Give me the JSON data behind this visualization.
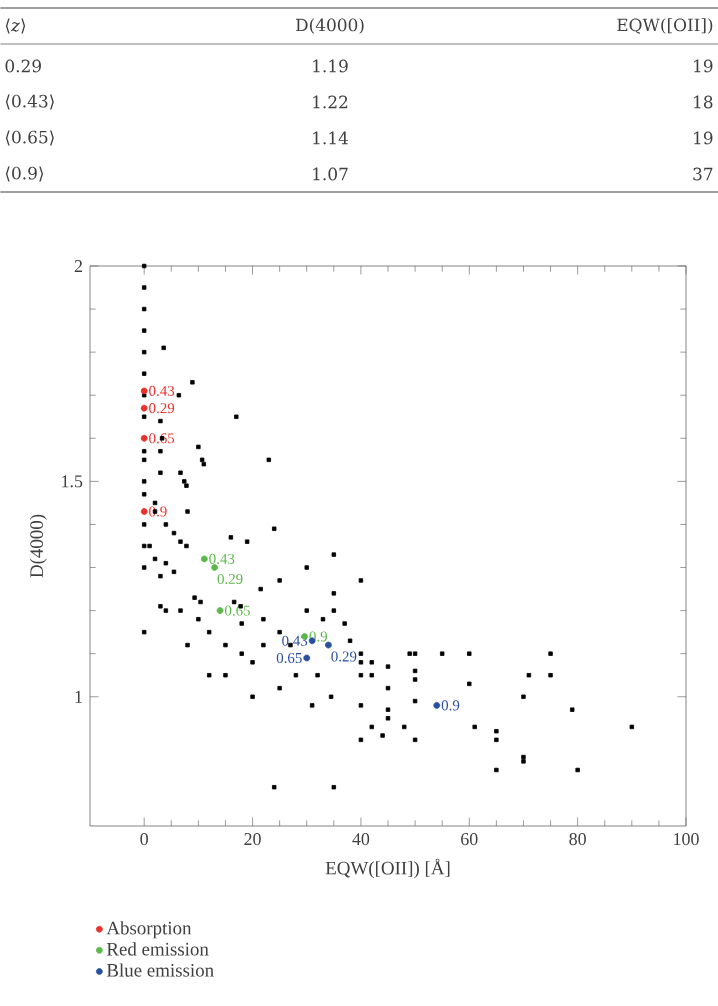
{
  "chart_data": {
    "type": "scatter",
    "xlabel": "EQW([OII]) [Å]",
    "ylabel": "D(4000)",
    "xlim": [
      -10,
      100
    ],
    "ylim": [
      0.7,
      2
    ],
    "xticks": [
      0,
      20,
      40,
      60,
      80,
      100
    ],
    "yticks": [
      1,
      1.5,
      2
    ],
    "marker": "square",
    "legend": "bottom left",
    "series": [
      {
        "color": "#000000",
        "x": [
          0,
          0,
          0,
          0,
          0,
          0,
          0,
          0,
          0,
          0,
          0,
          0,
          0,
          0,
          0,
          0,
          3.6,
          8.9,
          6.4,
          17,
          3,
          23,
          3.3,
          3,
          10,
          10.7,
          11,
          6.7,
          7.4,
          7.8,
          3,
          2,
          2,
          24,
          16,
          19,
          35,
          40,
          8,
          4,
          5.5,
          6.7,
          7.8,
          1,
          2,
          4,
          5.5,
          3,
          25,
          35,
          21.5,
          16.6,
          17.8,
          3,
          4,
          6.7,
          9.3,
          10.4,
          30,
          30,
          35,
          37,
          38,
          40,
          40,
          42,
          45,
          49,
          50,
          55,
          60,
          75,
          50,
          50,
          42,
          40,
          45,
          60,
          71,
          75,
          34.5,
          31,
          40,
          45,
          45,
          50,
          70,
          79,
          42,
          44,
          48,
          61,
          65,
          65,
          40,
          50,
          70,
          70,
          65,
          80,
          90,
          35,
          24,
          25,
          22,
          18,
          20,
          15,
          12,
          10,
          28,
          25,
          20,
          15,
          32,
          27,
          18,
          8,
          12,
          22,
          33
        ],
        "values": [
          2.0,
          1.95,
          1.9,
          1.85,
          1.8,
          1.75,
          1.7,
          1.65,
          1.57,
          1.55,
          1.5,
          1.47,
          1.4,
          1.35,
          1.3,
          1.15,
          1.81,
          1.73,
          1.7,
          1.65,
          1.64,
          1.55,
          1.6,
          1.57,
          1.58,
          1.55,
          1.54,
          1.52,
          1.5,
          1.49,
          1.52,
          1.45,
          1.43,
          1.39,
          1.37,
          1.36,
          1.33,
          1.27,
          1.43,
          1.4,
          1.38,
          1.36,
          1.35,
          1.35,
          1.32,
          1.31,
          1.29,
          1.28,
          1.27,
          1.24,
          1.25,
          1.22,
          1.21,
          1.21,
          1.2,
          1.2,
          1.23,
          1.22,
          1.3,
          1.2,
          1.2,
          1.17,
          1.13,
          1.1,
          1.08,
          1.08,
          1.07,
          1.1,
          1.1,
          1.1,
          1.1,
          1.1,
          1.06,
          1.04,
          1.05,
          1.05,
          1.02,
          1.03,
          1.05,
          1.05,
          1.0,
          0.98,
          0.98,
          0.97,
          0.95,
          0.99,
          1.0,
          0.97,
          0.93,
          0.91,
          0.93,
          0.93,
          0.92,
          0.9,
          0.9,
          0.9,
          0.86,
          0.85,
          0.83,
          0.83,
          0.93,
          0.79,
          0.79,
          1.15,
          1.12,
          1.1,
          1.08,
          1.12,
          1.15,
          1.18,
          1.05,
          1.02,
          1.0,
          1.05,
          1.05,
          1.12,
          1.17,
          1.12,
          1.05,
          1.18,
          1.18
        ]
      },
      {
        "name": "Absorption",
        "color": "#e8322b",
        "marker": "circle",
        "x": [
          0,
          0,
          0,
          0
        ],
        "values": [
          1.71,
          1.67,
          1.6,
          1.43
        ]
      },
      {
        "name": "Red emission",
        "color": "#5cb84a",
        "marker": "circle",
        "x": [
          11.1,
          13,
          14,
          29.6
        ],
        "values": [
          1.32,
          1.3,
          1.2,
          1.14
        ]
      },
      {
        "name": "Blue emission",
        "color": "#2a4fa0",
        "marker": "circle",
        "x": [
          34,
          30,
          31,
          54
        ],
        "values": [
          1.12,
          1.09,
          1.13,
          0.98
        ]
      }
    ],
    "annotations": [
      "⟨*z*⟩",
      "D(4000)",
      "EQW([OII])",
      "0.29",
      "1.19",
      "19",
      "⟨0.43⟩",
      "1.22",
      "18",
      "⟨0.65⟩",
      "1.14",
      "19",
      "⟨0.9⟩",
      "1.07",
      "37",
      {
        "text": "0.43",
        "x": 0,
        "y": 1.71
      },
      {
        "text": "0.29",
        "x": 0,
        "y": 1.67
      },
      {
        "text": "0.65",
        "x": 0,
        "y": 1.6
      },
      {
        "text": "0.9",
        "x": 0,
        "y": 1.43
      },
      {
        "text": "0.43",
        "x": 11.1,
        "y": 1.32
      },
      {
        "text": "0.29",
        "x": 13,
        "y": 1.3
      },
      {
        "text": "0.65",
        "x": 14,
        "y": 1.2
      },
      {
        "text": "0.9",
        "x": 29.6,
        "y": 1.14
      },
      {
        "text": "0.29",
        "x": 34,
        "y": 1.12
      },
      {
        "text": "0.65",
        "x": 30,
        "y": 1.09
      },
      {
        "text": "0.43",
        "x": 31,
        "y": 1.13
      },
      {
        "text": "0.9",
        "x": 54,
        "y": 0.98
      }
    ]
  }
}
